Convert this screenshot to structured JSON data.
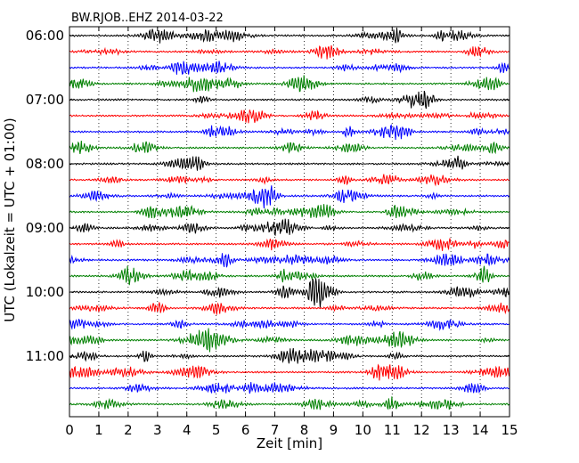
{
  "chart_data": {
    "type": "line",
    "title": "BW.RJOB..EHZ 2014-03-22",
    "xlabel": "Zeit  [min]",
    "ylabel": "UTC (Lokalzeit = UTC + 01:00)",
    "xlim": [
      0,
      15
    ],
    "x_ticks": [
      0,
      1,
      2,
      3,
      4,
      5,
      6,
      7,
      8,
      9,
      10,
      11,
      12,
      13,
      14,
      15
    ],
    "x_tick_labels": [
      "0",
      "1",
      "2",
      "3",
      "4",
      "5",
      "6",
      "7",
      "8",
      "9",
      "10",
      "11",
      "12",
      "13",
      "14",
      "15"
    ],
    "y_tick_labels": [
      "06:00",
      "07:00",
      "08:00",
      "09:00",
      "10:00",
      "11:00"
    ],
    "traces_per_hour": 4,
    "trace_count": 24,
    "trace_colors": [
      "#000000",
      "#ff0000",
      "#0000ff",
      "#008000"
    ],
    "vertical_grid": "dotted",
    "traces_start": "06:00",
    "trace_length_min": 15
  }
}
